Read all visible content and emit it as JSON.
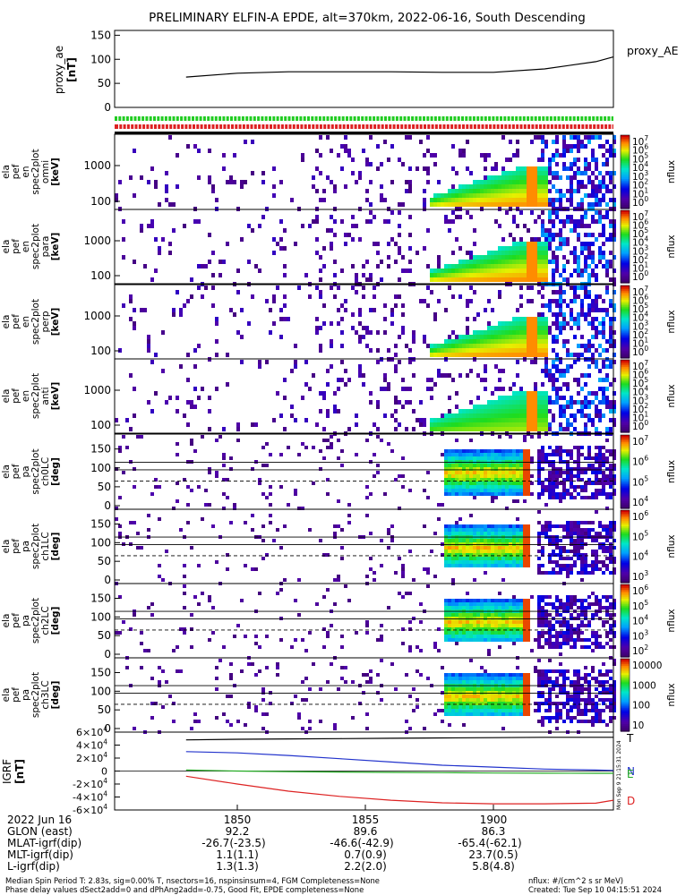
{
  "title": "PRELIMINARY ELFIN-A EPDE, alt=370km, 2022-06-16, South Descending",
  "time_axis": {
    "date": "2022 Jun 16",
    "ticks": [
      "1850",
      "1855",
      "1900"
    ]
  },
  "orbit_table": {
    "rows": [
      {
        "label": "GLON (east)",
        "values": [
          "92.2",
          "89.6",
          "86.3"
        ]
      },
      {
        "label": "MLAT-igrf(dip)",
        "values": [
          "-26.7(-23.5)",
          "-46.6(-42.9)",
          "-65.4(-62.1)"
        ]
      },
      {
        "label": "MLT-igrf(dip)",
        "values": [
          "1.1(1.1)",
          "0.7(0.9)",
          "23.7(0.5)"
        ]
      },
      {
        "label": "L-igrf(dip)",
        "values": [
          "1.3(1.3)",
          "2.2(2.0)",
          "5.8(4.8)"
        ]
      }
    ]
  },
  "footer": {
    "line1": "Median Spin Period T: 2.83s, sig=0.00% T, nsectors=16, nspinsinsum=4, FGM Completeness=None",
    "line2": "Phase delay values dSect2add=0 and dPhAng2add=-0.75, Good Fit, EPDE completeness=None",
    "units": "nflux: #/(cm^2 s sr MeV)",
    "created": "Created: Tue Sep 10 04:15:51 2024"
  },
  "side_stamp": "Mon Sep 9 21:15:31 2024",
  "colors": {
    "status_green": "#22cc22",
    "status_red": "#dd2222",
    "igrf_N": "#2233cc",
    "igrf_E": "#22aa22",
    "igrf_D": "#dd2222"
  },
  "chart_data": [
    {
      "type": "line",
      "id": "proxy_ae",
      "ylabel": [
        "proxy_ae",
        "[nT]"
      ],
      "ytick_labels": [
        "0",
        "50",
        "100",
        "150"
      ],
      "ylim": [
        0,
        160
      ],
      "legend": "proxy_AE",
      "x_minutes": [
        -2,
        0,
        2,
        4,
        6,
        8,
        10,
        12,
        14,
        16
      ],
      "values": [
        63,
        71,
        74,
        74,
        74,
        73,
        73,
        80,
        95,
        105
      ]
    },
    {
      "type": "heatmap",
      "id": "en_omni",
      "ylabel": [
        "ela",
        "pef",
        "en",
        "spec2plot",
        "omni",
        "[keV]"
      ],
      "ytick_labels": [
        "100",
        "1000"
      ],
      "scale": "log",
      "cbar": {
        "label": "nflux",
        "ticks": [
          "10",
          "10",
          "10",
          "10",
          "10",
          "10",
          "10",
          "10"
        ],
        "sup": [
          "0",
          "1",
          "2",
          "3",
          "4",
          "5",
          "6",
          "7"
        ]
      }
    },
    {
      "type": "heatmap",
      "id": "en_para",
      "ylabel": [
        "ela",
        "pef",
        "en",
        "spec2plot",
        "para",
        "[keV]"
      ],
      "ytick_labels": [
        "100",
        "1000"
      ],
      "scale": "log",
      "cbar": {
        "label": "nflux",
        "ticks": [
          "10",
          "10",
          "10",
          "10",
          "10",
          "10",
          "10",
          "10"
        ],
        "sup": [
          "0",
          "1",
          "2",
          "3",
          "4",
          "5",
          "6",
          "7"
        ]
      }
    },
    {
      "type": "heatmap",
      "id": "en_perp",
      "ylabel": [
        "ela",
        "pef",
        "en",
        "spec2plot",
        "perp",
        "[keV]"
      ],
      "ytick_labels": [
        "100",
        "1000"
      ],
      "scale": "log",
      "cbar": {
        "label": "nflux",
        "ticks": [
          "10",
          "10",
          "10",
          "10",
          "10",
          "10",
          "10",
          "10"
        ],
        "sup": [
          "0",
          "1",
          "2",
          "3",
          "4",
          "5",
          "6",
          "7"
        ]
      }
    },
    {
      "type": "heatmap",
      "id": "en_anti",
      "ylabel": [
        "ela",
        "pef",
        "en",
        "spec2plot",
        "anti",
        "[keV]"
      ],
      "ytick_labels": [
        "100",
        "1000"
      ],
      "scale": "log",
      "cbar": {
        "label": "nflux",
        "ticks": [
          "10",
          "10",
          "10",
          "10",
          "10",
          "10",
          "10",
          "10"
        ],
        "sup": [
          "0",
          "1",
          "2",
          "3",
          "4",
          "5",
          "6",
          "7"
        ]
      }
    },
    {
      "type": "heatmap",
      "id": "pa_ch0",
      "ylabel": [
        "ela",
        "pef",
        "pa",
        "spec2plot",
        "ch0LC",
        "[deg]"
      ],
      "ytick_labels": [
        "0",
        "50",
        "100",
        "150"
      ],
      "cbar": {
        "label": "nflux",
        "ticks": [
          "10",
          "10",
          "10",
          "10"
        ],
        "sup": [
          "4",
          "5",
          "6",
          "7"
        ]
      }
    },
    {
      "type": "heatmap",
      "id": "pa_ch1",
      "ylabel": [
        "ela",
        "pef",
        "pa",
        "spec2plot",
        "ch1LC",
        "[deg]"
      ],
      "ytick_labels": [
        "0",
        "50",
        "100",
        "150"
      ],
      "cbar": {
        "label": "nflux",
        "ticks": [
          "10",
          "10",
          "10",
          "10"
        ],
        "sup": [
          "3",
          "4",
          "5",
          "6"
        ]
      }
    },
    {
      "type": "heatmap",
      "id": "pa_ch2",
      "ylabel": [
        "ela",
        "pef",
        "pa",
        "spec2plot",
        "ch2LC",
        "[deg]"
      ],
      "ytick_labels": [
        "0",
        "50",
        "100",
        "150"
      ],
      "cbar": {
        "label": "nflux",
        "ticks": [
          "10",
          "10",
          "10",
          "10",
          "10"
        ],
        "sup": [
          "2",
          "3",
          "4",
          "5",
          "6"
        ]
      }
    },
    {
      "type": "heatmap",
      "id": "pa_ch3",
      "ylabel": [
        "ela",
        "pef",
        "pa",
        "spec2plot",
        "ch3LC",
        "[deg]"
      ],
      "ytick_labels": [
        "0",
        "50",
        "100",
        "150"
      ],
      "cbar": {
        "label": "nflux",
        "ticks": [
          "10",
          "100",
          "1000",
          "10000"
        ],
        "sup": [
          "",
          "",
          "",
          ""
        ]
      }
    },
    {
      "type": "line",
      "id": "igrf",
      "ylabel": [
        "IGRF",
        "[nT]"
      ],
      "ytick_labels": [
        "-6×10",
        "-4×10",
        "-2×10",
        "0",
        "2×10",
        "4×10",
        "6×10"
      ],
      "ytick_sup": [
        "4",
        "4",
        "4",
        "",
        "4",
        "4",
        "4"
      ],
      "ylim": [
        -60000,
        60000
      ],
      "x_minutes": [
        -2,
        0,
        2,
        4,
        6,
        8,
        10,
        12,
        14,
        16
      ],
      "series": [
        {
          "name": "T",
          "values": [
            48000,
            49000,
            49500,
            50000,
            50500,
            51000,
            51500,
            52000,
            52000,
            52000
          ]
        },
        {
          "name": "N",
          "values": [
            30000,
            28000,
            24000,
            19000,
            14000,
            9000,
            6000,
            3000,
            1500,
            1000
          ]
        },
        {
          "name": "E",
          "values": [
            1500,
            0,
            -800,
            -1500,
            -2000,
            -2500,
            -3000,
            -3300,
            -3500,
            -3400
          ]
        },
        {
          "name": "D",
          "values": [
            -8000,
            -20000,
            -31000,
            -39000,
            -45000,
            -49000,
            -50500,
            -50500,
            -49500,
            -45000
          ]
        }
      ]
    }
  ]
}
